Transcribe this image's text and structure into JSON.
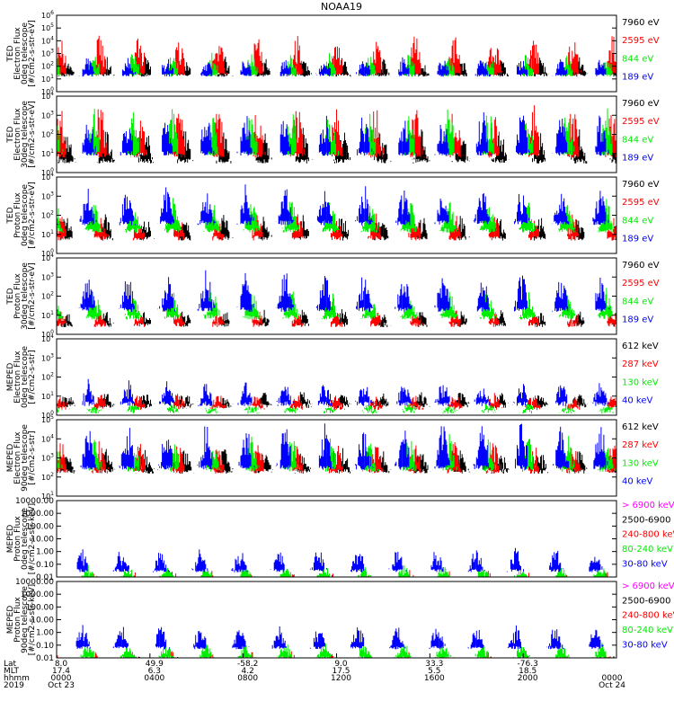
{
  "title": "NOAA19",
  "colors": {
    "black": "#000000",
    "blue": "#0000ff",
    "green": "#00ee00",
    "red": "#ff0000",
    "magenta": "#ff00ff"
  },
  "chart_data": [
    {
      "type": "line",
      "panel": 1,
      "ylabel_lines": [
        "TED",
        "Electron Flux",
        "0deg telescope",
        "[#/cm2-s-str-eV]"
      ],
      "yscale": "log",
      "ylim": [
        1,
        1000000
      ],
      "yticks": [
        "10^0",
        "10^1",
        "10^2",
        "10^3",
        "10^4",
        "10^5",
        "10^6"
      ],
      "series": [
        {
          "name": "7960 eV",
          "color": "black",
          "base": 1.3,
          "burst": 1.2,
          "density": 0.45
        },
        {
          "name": "2595 eV",
          "color": "red",
          "base": 1.4,
          "burst": 2.6,
          "density": 0.2
        },
        {
          "name": "844 eV",
          "color": "green",
          "base": 1.3,
          "burst": 1.5,
          "density": 0.1
        },
        {
          "name": "189 eV",
          "color": "blue",
          "base": 1.3,
          "burst": 1.2,
          "density": 0.08
        }
      ]
    },
    {
      "type": "line",
      "panel": 2,
      "ylabel_lines": [
        "TED",
        "Electron Flux",
        "30deg telescope",
        "[#/cm2-s-str-eV]"
      ],
      "yscale": "log",
      "ylim": [
        1,
        10000
      ],
      "yticks": [
        "10^0",
        "10^1",
        "10^2",
        "10^3",
        "10^4"
      ],
      "series": [
        {
          "name": "7960 eV",
          "color": "black",
          "base": 0.6,
          "burst": 1.4,
          "density": 0.45
        },
        {
          "name": "2595 eV",
          "color": "red",
          "base": 0.9,
          "burst": 2.2,
          "density": 0.25
        },
        {
          "name": "844 eV",
          "color": "green",
          "base": 1.0,
          "burst": 2.0,
          "density": 0.1
        },
        {
          "name": "189 eV",
          "color": "blue",
          "base": 1.0,
          "burst": 1.8,
          "density": 0.12
        }
      ]
    },
    {
      "type": "line",
      "panel": 3,
      "ylabel_lines": [
        "TED",
        "Proton Flux",
        "0deg telescope",
        "[#/cm2-s-str-eV]"
      ],
      "yscale": "log",
      "ylim": [
        1,
        10000
      ],
      "yticks": [
        "10^0",
        "10^1",
        "10^2",
        "10^3",
        "10^4"
      ],
      "series": [
        {
          "name": "7960 eV",
          "color": "black",
          "base": 0.8,
          "burst": 1.0,
          "density": 0.1
        },
        {
          "name": "2595 eV",
          "color": "red",
          "base": 0.8,
          "burst": 1.0,
          "density": 0.05
        },
        {
          "name": "844 eV",
          "color": "green",
          "base": 1.2,
          "burst": 1.4,
          "density": 0.9
        },
        {
          "name": "189 eV",
          "color": "blue",
          "base": 1.6,
          "burst": 1.6,
          "density": 0.5
        }
      ]
    },
    {
      "type": "line",
      "panel": 4,
      "ylabel_lines": [
        "TED",
        "Proton Flux",
        "30deg telescope",
        "[#/cm2-s-str-eV]"
      ],
      "yscale": "log",
      "ylim": [
        1,
        10000
      ],
      "yticks": [
        "10^0",
        "10^1",
        "10^2",
        "10^3",
        "10^4"
      ],
      "series": [
        {
          "name": "7960 eV",
          "color": "black",
          "base": 0.5,
          "burst": 0.6,
          "density": 0.05
        },
        {
          "name": "2595 eV",
          "color": "red",
          "base": 0.5,
          "burst": 0.6,
          "density": 0.03
        },
        {
          "name": "844 eV",
          "color": "green",
          "base": 0.9,
          "burst": 1.2,
          "density": 0.85
        },
        {
          "name": "189 eV",
          "color": "blue",
          "base": 1.3,
          "burst": 1.7,
          "density": 0.5
        }
      ]
    },
    {
      "type": "line",
      "panel": 5,
      "ylabel_lines": [
        "MEPED",
        "Electron Flux",
        "0deg telescope",
        "[#/cm2-s-str]"
      ],
      "yscale": "log",
      "ylim": [
        1,
        10000
      ],
      "yticks": [
        "10^0",
        "10^1",
        "10^2",
        "10^3",
        "10^4"
      ],
      "series": [
        {
          "name": "612 keV",
          "color": "black",
          "base": 0.5,
          "burst": 0.6,
          "density": 0.7
        },
        {
          "name": "287 keV",
          "color": "red",
          "base": 0.4,
          "burst": 0.6,
          "density": 0.5
        },
        {
          "name": "130 keV",
          "color": "green",
          "base": 0.2,
          "burst": 0.3,
          "density": 0.6
        },
        {
          "name": "40 keV",
          "color": "blue",
          "base": 0.6,
          "burst": 1.0,
          "density": 0.4
        }
      ]
    },
    {
      "type": "line",
      "panel": 6,
      "ylabel_lines": [
        "MEPED",
        "Electron Flux",
        "90deg telescope",
        "[#/cm2-s-str]"
      ],
      "yscale": "log",
      "ylim": [
        10,
        100000
      ],
      "yticks": [
        "10^1",
        "10^2",
        "10^3",
        "10^4",
        "10^5"
      ],
      "series": [
        {
          "name": "612 keV",
          "color": "black",
          "base": 1.3,
          "burst": 1.0,
          "density": 0.7
        },
        {
          "name": "287 keV",
          "color": "red",
          "base": 1.3,
          "burst": 1.3,
          "density": 0.5
        },
        {
          "name": "130 keV",
          "color": "green",
          "base": 1.4,
          "burst": 1.5,
          "density": 0.4
        },
        {
          "name": "40 keV",
          "color": "blue",
          "base": 1.5,
          "burst": 2.0,
          "density": 0.4
        }
      ]
    },
    {
      "type": "line",
      "panel": 7,
      "ylabel_lines": [
        "MEPED",
        "Proton Flux",
        "0deg telescope",
        "[#/cm2-s-str-keV]"
      ],
      "yscale": "log",
      "ylim": [
        0.01,
        10000
      ],
      "yticks": [
        "0.01",
        "0.10",
        "1.00",
        "10.00",
        "100.00",
        "1000.00",
        "10000.00"
      ],
      "series": [
        {
          "name": "> 6900 keV",
          "color": "magenta",
          "base": -1.4,
          "burst": 0.6,
          "density": 0.15
        },
        {
          "name": "2500-6900",
          "color": "black",
          "base": -1.1,
          "burst": 0.8,
          "density": 0.3
        },
        {
          "name": "240-800 keV",
          "color": "red",
          "base": -0.9,
          "burst": 1.2,
          "density": 0.2
        },
        {
          "name": "80-240 keV",
          "color": "green",
          "base": -0.1,
          "burst": 0.8,
          "density": 0.7
        },
        {
          "name": "30-80 keV",
          "color": "blue",
          "base": 0.5,
          "burst": 1.5,
          "density": 0.35
        }
      ]
    },
    {
      "type": "line",
      "panel": 8,
      "ylabel_lines": [
        "MEPED",
        "Proton Flux",
        "90deg telescope",
        "[#/cm2-s-str-keV]"
      ],
      "yscale": "log",
      "ylim": [
        0.01,
        10000
      ],
      "yticks": [
        "0.01",
        "0.10",
        "1.00",
        "10.00",
        "100.00",
        "1000.00",
        "10000.00"
      ],
      "series": [
        {
          "name": "> 6900 keV",
          "color": "magenta",
          "base": -1.5,
          "burst": 0.5,
          "density": 0.15
        },
        {
          "name": "2500-6900",
          "color": "black",
          "base": -1.0,
          "burst": 0.9,
          "density": 0.3
        },
        {
          "name": "240-800 keV",
          "color": "red",
          "base": -1.0,
          "burst": 1.3,
          "density": 0.25
        },
        {
          "name": "80-240 keV",
          "color": "green",
          "base": 0.0,
          "burst": 1.0,
          "density": 0.7
        },
        {
          "name": "30-80 keV",
          "color": "blue",
          "base": 0.8,
          "burst": 1.5,
          "density": 0.4
        }
      ]
    }
  ],
  "x_axis": {
    "row_labels": [
      "Lat",
      "MLT",
      "hhmm",
      "2019"
    ],
    "ticks": [
      {
        "lat": "8.0",
        "mlt": "17.4",
        "hhmm": "0000",
        "date": "Oct 23"
      },
      {
        "lat": "49.9",
        "mlt": "6.3",
        "hhmm": "0400",
        "date": ""
      },
      {
        "lat": "-58.2",
        "mlt": "4.2",
        "hhmm": "0800",
        "date": ""
      },
      {
        "lat": "9.0",
        "mlt": "17.5",
        "hhmm": "1200",
        "date": ""
      },
      {
        "lat": "33.3",
        "mlt": "5.5",
        "hhmm": "1600",
        "date": ""
      },
      {
        "lat": "-76.3",
        "mlt": "18.5",
        "hhmm": "2000",
        "date": ""
      },
      {
        "lat": "",
        "mlt": "",
        "hhmm": "0000",
        "date": "Oct 24"
      }
    ]
  }
}
